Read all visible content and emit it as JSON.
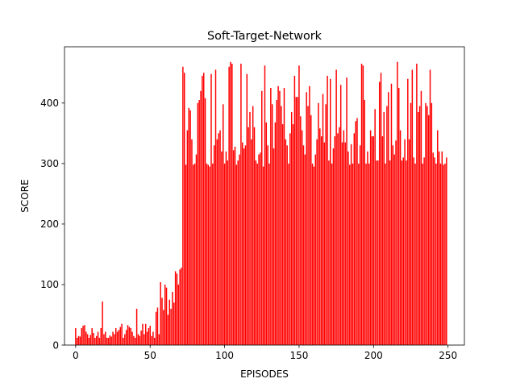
{
  "chart_data": {
    "type": "bar",
    "title": "Soft-Target-Network",
    "xlabel": "EPISODES",
    "ylabel": "SCORE",
    "x_ticks": [
      0,
      50,
      100,
      150,
      200,
      250
    ],
    "y_ticks": [
      0,
      100,
      200,
      300,
      400
    ],
    "xlim": [
      -7.5,
      261
    ],
    "ylim": [
      0,
      493
    ],
    "bar_color": "#ff0000",
    "grid": false,
    "legend": "none",
    "x_start": 0,
    "values": [
      28,
      12,
      15,
      14,
      28,
      32,
      33,
      22,
      18,
      12,
      17,
      28,
      20,
      12,
      15,
      22,
      12,
      28,
      72,
      18,
      22,
      12,
      12,
      16,
      14,
      22,
      18,
      28,
      22,
      25,
      30,
      35,
      12,
      18,
      25,
      33,
      30,
      28,
      22,
      15,
      12,
      60,
      18,
      15,
      24,
      35,
      18,
      35,
      22,
      28,
      32,
      15,
      22,
      12,
      55,
      62,
      18,
      104,
      78,
      58,
      100,
      95,
      50,
      75,
      60,
      88,
      70,
      122,
      118,
      100,
      125,
      128,
      460,
      450,
      298,
      355,
      392,
      388,
      340,
      298,
      300,
      315,
      400,
      405,
      420,
      445,
      450,
      408,
      300,
      298,
      295,
      448,
      300,
      330,
      455,
      340,
      350,
      355,
      320,
      398,
      300,
      320,
      305,
      460,
      468,
      465,
      322,
      328,
      298,
      305,
      315,
      465,
      335,
      325,
      330,
      448,
      360,
      385,
      340,
      395,
      360,
      305,
      300,
      315,
      318,
      420,
      295,
      462,
      368,
      330,
      300,
      425,
      398,
      325,
      368,
      405,
      428,
      420,
      395,
      365,
      425,
      340,
      330,
      300,
      350,
      385,
      365,
      445,
      410,
      410,
      462,
      378,
      355,
      330,
      315,
      418,
      395,
      428,
      380,
      300,
      295,
      315,
      340,
      400,
      358,
      345,
      415,
      335,
      398,
      445,
      305,
      440,
      300,
      325,
      345,
      455,
      350,
      360,
      430,
      335,
      355,
      335,
      442,
      320,
      298,
      332,
      300,
      350,
      370,
      375,
      300,
      330,
      465,
      462,
      405,
      300,
      320,
      300,
      355,
      345,
      345,
      390,
      305,
      305,
      435,
      450,
      345,
      385,
      300,
      395,
      418,
      305,
      432,
      330,
      315,
      338,
      468,
      425,
      355,
      305,
      310,
      340,
      305,
      440,
      340,
      400,
      455,
      310,
      300,
      465,
      385,
      395,
      420,
      300,
      310,
      400,
      395,
      380,
      455,
      400,
      318,
      310,
      300,
      355,
      320,
      300,
      320,
      298,
      300,
      310
    ]
  }
}
